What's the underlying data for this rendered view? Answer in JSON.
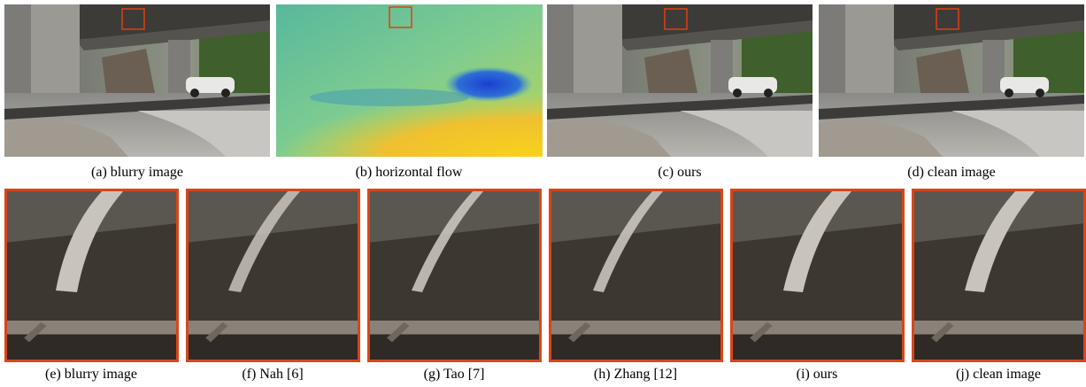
{
  "top_row": {
    "captions": [
      "(a) blurry image",
      "(b) horizontal flow",
      "(c) ours",
      "(d) clean image"
    ]
  },
  "bottom_row": {
    "captions": [
      "(e) blurry image",
      "(f) Nah [6]",
      "(g) Tao [7]",
      "(h) Zhang [12]",
      "(i) ours",
      "(j) clean image"
    ]
  }
}
